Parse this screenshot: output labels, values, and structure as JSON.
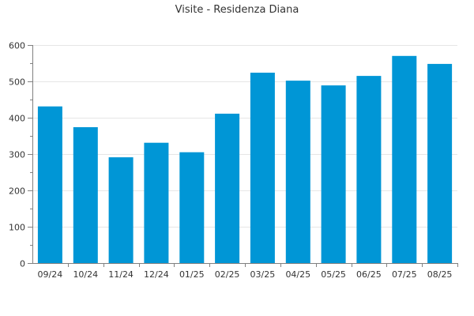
{
  "chart_data": {
    "type": "bar",
    "title": "Visite - Residenza Diana",
    "xlabel": "",
    "ylabel": "",
    "categories": [
      "09/24",
      "10/24",
      "11/24",
      "12/24",
      "01/25",
      "02/25",
      "03/25",
      "04/25",
      "05/25",
      "06/25",
      "07/25",
      "08/25"
    ],
    "values": [
      431,
      374,
      291,
      331,
      305,
      411,
      524,
      502,
      489,
      515,
      570,
      548
    ],
    "ylim": [
      0,
      600
    ],
    "yticks": [
      "0",
      "100",
      "200",
      "300",
      "400",
      "500",
      "600"
    ],
    "grid": true,
    "legend": "none",
    "colors": {
      "bar": "#0096d6",
      "grid": "#e6e6e6",
      "axis": "#808080"
    }
  }
}
